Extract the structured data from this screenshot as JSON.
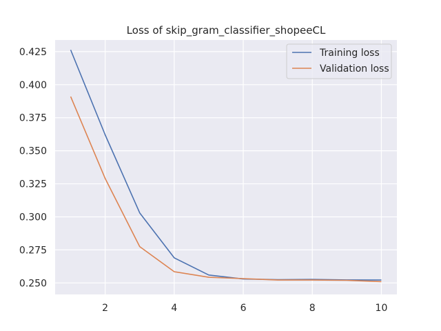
{
  "chart_data": {
    "type": "line",
    "title": "Loss of skip_gram_classifier_shopeeCL",
    "xlabel": "",
    "ylabel": "",
    "x": [
      1,
      2,
      3,
      4,
      5,
      6,
      7,
      8,
      9,
      10
    ],
    "xlim": [
      0.55,
      10.45
    ],
    "ylim": [
      0.2413,
      0.4338
    ],
    "xticks": [
      2,
      4,
      6,
      8,
      10
    ],
    "xtick_labels": [
      "2",
      "4",
      "6",
      "8",
      "10"
    ],
    "yticks": [
      0.25,
      0.275,
      0.3,
      0.325,
      0.35,
      0.375,
      0.4,
      0.425
    ],
    "ytick_labels": [
      "0.250",
      "0.275",
      "0.300",
      "0.325",
      "0.350",
      "0.375",
      "0.400",
      "0.425"
    ],
    "grid": true,
    "legend_position": "top-right",
    "series": [
      {
        "name": "Training loss",
        "color": "#4c72b0",
        "values": [
          0.4263,
          0.362,
          0.303,
          0.269,
          0.256,
          0.253,
          0.2525,
          0.2527,
          0.2523,
          0.2522
        ]
      },
      {
        "name": "Validation loss",
        "color": "#dd8452",
        "values": [
          0.391,
          0.329,
          0.2775,
          0.2585,
          0.2543,
          0.2533,
          0.2522,
          0.2522,
          0.252,
          0.251
        ]
      }
    ],
    "colors": {
      "plot_background": "#eaeaf2",
      "grid": "#ffffff",
      "text": "#262626"
    }
  }
}
